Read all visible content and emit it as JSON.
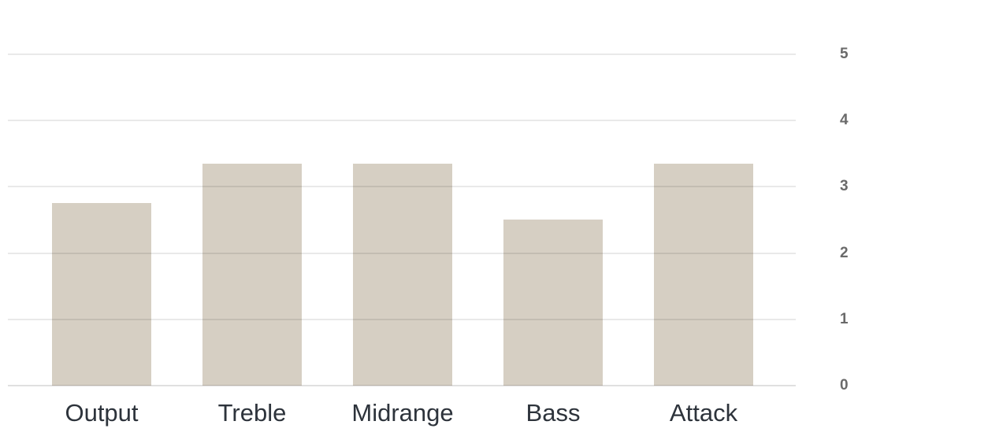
{
  "chart_data": {
    "type": "bar",
    "title": "",
    "xlabel": "",
    "ylabel": "",
    "categories": [
      "Output",
      "Treble",
      "Midrange",
      "Bass",
      "Attack"
    ],
    "values": [
      2.75,
      3.35,
      3.35,
      2.5,
      3.35
    ],
    "ylim": [
      0,
      5
    ],
    "yticks": [
      0,
      1,
      2,
      3,
      4,
      5
    ],
    "y_axis_side": "right",
    "grid": true,
    "gridlines_over_bars": true,
    "legend": "none",
    "colors": {
      "background": "#ffffff",
      "bar": "#d6cfc3",
      "gridline": "rgba(0,0,0,0.085)",
      "baseline": "rgba(0,0,0,0.12)",
      "tick_label": "#6a6a6a",
      "category_label": "#2d333b"
    }
  }
}
